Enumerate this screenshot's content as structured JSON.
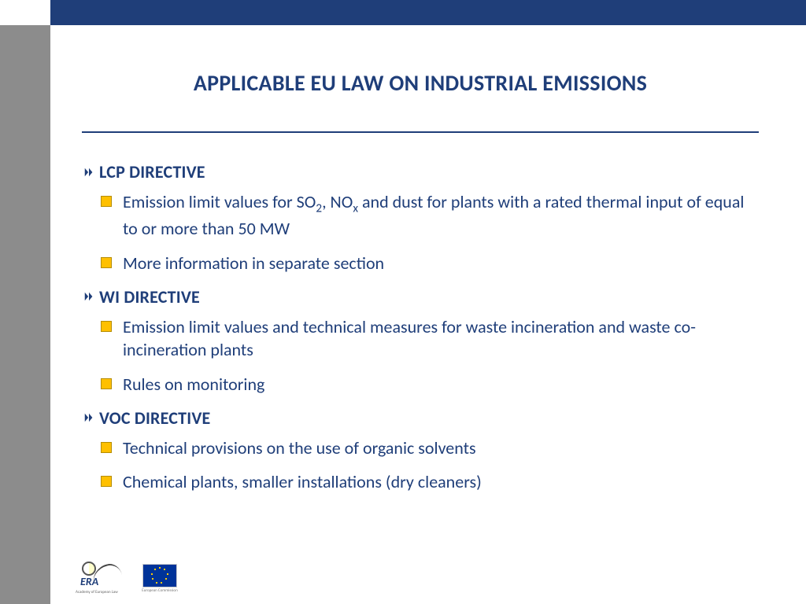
{
  "colors": {
    "primary": "#1f3e79",
    "accent_bullet": "#ffc000",
    "sidebar": "#8c8c8c",
    "background": "#ffffff"
  },
  "typography": {
    "title_fontsize": 28,
    "heading_fontsize": 22,
    "body_fontsize": 22,
    "font_family": "Calibri"
  },
  "title": "APPLICABLE EU LAW ON INDUSTRIAL EMISSIONS",
  "sections": [
    {
      "heading": "LCP DIRECTIVE",
      "bullets": [
        {
          "html": "Emission limit values for SO<sub>2</sub>, NO<sub>x</sub> and dust for plants with a rated thermal input of equal to or more than 50 MW"
        },
        {
          "text": "More information in separate section"
        }
      ]
    },
    {
      "heading": "WI DIRECTIVE",
      "bullets": [
        {
          "text": "Emission limit values and technical measures for waste incineration and waste co-incineration plants"
        },
        {
          "text": "Rules on monitoring"
        }
      ]
    },
    {
      "heading": "VOC DIRECTIVE",
      "bullets": [
        {
          "text": "Technical provisions on the use of organic solvents"
        },
        {
          "text": "Chemical plants, smaller installations (dry cleaners)"
        }
      ]
    }
  ],
  "footer": {
    "era_text": "ERA",
    "era_sub": "Academy of European Law",
    "ec_text": "European Commission"
  }
}
